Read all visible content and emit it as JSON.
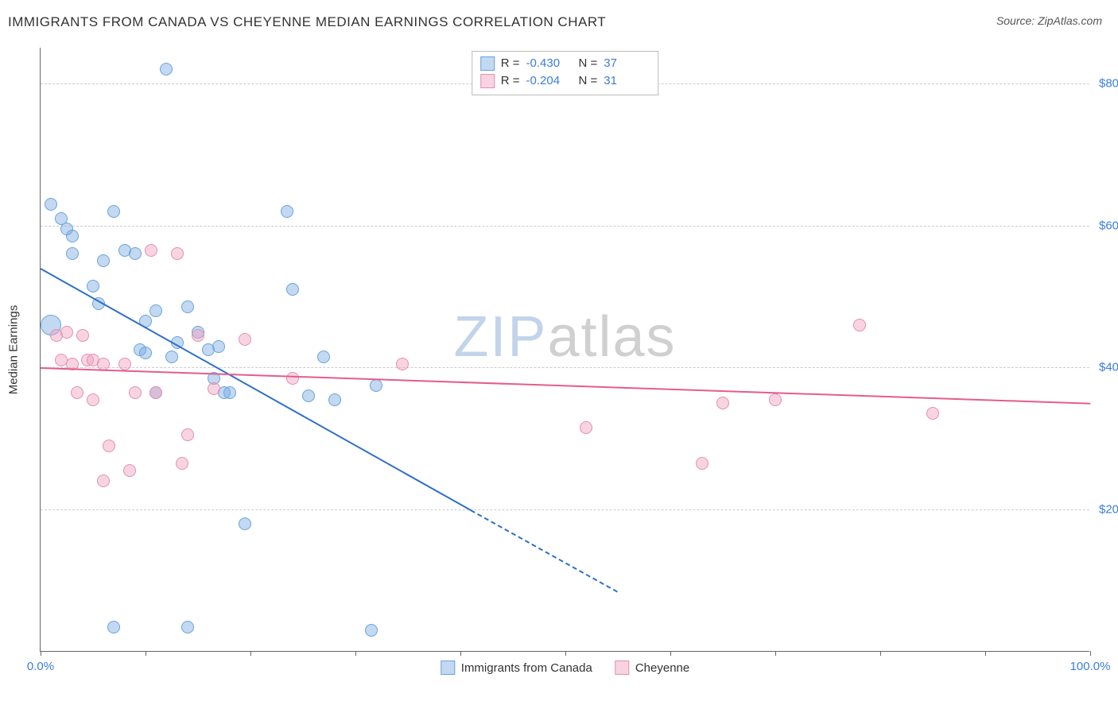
{
  "header": {
    "title": "IMMIGRANTS FROM CANADA VS CHEYENNE MEDIAN EARNINGS CORRELATION CHART",
    "source": "Source: ZipAtlas.com"
  },
  "watermark": {
    "zip": "ZIP",
    "atlas": "atlas"
  },
  "chart": {
    "type": "scatter",
    "background_color": "#ffffff",
    "grid_color": "#cccccc",
    "axis_color": "#666666",
    "ylabel": "Median Earnings",
    "label_fontsize": 15,
    "tick_fontsize": 15,
    "tick_color": "#3b7dd8",
    "xlim": [
      0,
      100
    ],
    "ylim": [
      0,
      85000
    ],
    "x_ticks": [
      0,
      10,
      20,
      30,
      40,
      50,
      60,
      70,
      80,
      90,
      100
    ],
    "x_tick_labels": {
      "0": "0.0%",
      "100": "100.0%"
    },
    "y_gridlines": [
      20000,
      40000,
      60000,
      80000
    ],
    "y_tick_labels": {
      "20000": "$20,000",
      "40000": "$40,000",
      "60000": "$60,000",
      "80000": "$80,000"
    },
    "series": [
      {
        "name": "Immigrants from Canada",
        "fill_color": "rgba(120,170,225,0.45)",
        "stroke_color": "#6aa3dd",
        "line_color": "#2f6fc7",
        "marker_radius": 8,
        "R": "-0.430",
        "N": "37",
        "points": [
          {
            "x": 1,
            "y": 63000,
            "r": 8
          },
          {
            "x": 2,
            "y": 61000,
            "r": 8
          },
          {
            "x": 2.5,
            "y": 59500,
            "r": 8
          },
          {
            "x": 3,
            "y": 58500,
            "r": 8
          },
          {
            "x": 1,
            "y": 46000,
            "r": 13
          },
          {
            "x": 3,
            "y": 56000,
            "r": 8
          },
          {
            "x": 5,
            "y": 51500,
            "r": 8
          },
          {
            "x": 5.5,
            "y": 49000,
            "r": 8
          },
          {
            "x": 6,
            "y": 55000,
            "r": 8
          },
          {
            "x": 7,
            "y": 62000,
            "r": 8
          },
          {
            "x": 8,
            "y": 56500,
            "r": 8
          },
          {
            "x": 9,
            "y": 56000,
            "r": 8
          },
          {
            "x": 9.5,
            "y": 42500,
            "r": 8
          },
          {
            "x": 10,
            "y": 46500,
            "r": 8
          },
          {
            "x": 10,
            "y": 42000,
            "r": 8
          },
          {
            "x": 11,
            "y": 48000,
            "r": 8
          },
          {
            "x": 11,
            "y": 36500,
            "r": 8
          },
          {
            "x": 12,
            "y": 82000,
            "r": 8
          },
          {
            "x": 12.5,
            "y": 41500,
            "r": 8
          },
          {
            "x": 13,
            "y": 43500,
            "r": 8
          },
          {
            "x": 14,
            "y": 48500,
            "r": 8
          },
          {
            "x": 15,
            "y": 45000,
            "r": 8
          },
          {
            "x": 16,
            "y": 42500,
            "r": 8
          },
          {
            "x": 16.5,
            "y": 38500,
            "r": 8
          },
          {
            "x": 17,
            "y": 43000,
            "r": 8
          },
          {
            "x": 17.5,
            "y": 36500,
            "r": 8
          },
          {
            "x": 18,
            "y": 36500,
            "r": 8
          },
          {
            "x": 19.5,
            "y": 18000,
            "r": 8
          },
          {
            "x": 23.5,
            "y": 62000,
            "r": 8
          },
          {
            "x": 24,
            "y": 51000,
            "r": 8
          },
          {
            "x": 25.5,
            "y": 36000,
            "r": 8
          },
          {
            "x": 27,
            "y": 41500,
            "r": 8
          },
          {
            "x": 28,
            "y": 35500,
            "r": 8
          },
          {
            "x": 32,
            "y": 37500,
            "r": 8
          },
          {
            "x": 7,
            "y": 3500,
            "r": 8
          },
          {
            "x": 14,
            "y": 3500,
            "r": 8
          },
          {
            "x": 31.5,
            "y": 3000,
            "r": 8
          }
        ],
        "regression": {
          "x1": 0,
          "y1": 54000,
          "x2": 41,
          "y2": 20000,
          "dashed_to_x": 55,
          "dashed_to_y": 8500
        }
      },
      {
        "name": "Cheyenne",
        "fill_color": "rgba(240,160,190,0.45)",
        "stroke_color": "#e58fb0",
        "line_color": "#e45c8f",
        "marker_radius": 8,
        "R": "-0.204",
        "N": "31",
        "points": [
          {
            "x": 1.5,
            "y": 44500,
            "r": 8
          },
          {
            "x": 2,
            "y": 41000,
            "r": 8
          },
          {
            "x": 2.5,
            "y": 45000,
            "r": 8
          },
          {
            "x": 3,
            "y": 40500,
            "r": 8
          },
          {
            "x": 3.5,
            "y": 36500,
            "r": 8
          },
          {
            "x": 4,
            "y": 44500,
            "r": 8
          },
          {
            "x": 4.5,
            "y": 41000,
            "r": 8
          },
          {
            "x": 5,
            "y": 41000,
            "r": 8
          },
          {
            "x": 5,
            "y": 35500,
            "r": 8
          },
          {
            "x": 6,
            "y": 40500,
            "r": 8
          },
          {
            "x": 6.5,
            "y": 29000,
            "r": 8
          },
          {
            "x": 6,
            "y": 24000,
            "r": 8
          },
          {
            "x": 8,
            "y": 40500,
            "r": 8
          },
          {
            "x": 8.5,
            "y": 25500,
            "r": 8
          },
          {
            "x": 9,
            "y": 36500,
            "r": 8
          },
          {
            "x": 10.5,
            "y": 56500,
            "r": 8
          },
          {
            "x": 11,
            "y": 36500,
            "r": 8
          },
          {
            "x": 13,
            "y": 56000,
            "r": 8
          },
          {
            "x": 13.5,
            "y": 26500,
            "r": 8
          },
          {
            "x": 14,
            "y": 30500,
            "r": 8
          },
          {
            "x": 15,
            "y": 44500,
            "r": 8
          },
          {
            "x": 16.5,
            "y": 37000,
            "r": 8
          },
          {
            "x": 19.5,
            "y": 44000,
            "r": 8
          },
          {
            "x": 24,
            "y": 38500,
            "r": 8
          },
          {
            "x": 34.5,
            "y": 40500,
            "r": 8
          },
          {
            "x": 52,
            "y": 31500,
            "r": 8
          },
          {
            "x": 63,
            "y": 26500,
            "r": 8
          },
          {
            "x": 65,
            "y": 35000,
            "r": 8
          },
          {
            "x": 70,
            "y": 35500,
            "r": 8
          },
          {
            "x": 78,
            "y": 46000,
            "r": 8
          },
          {
            "x": 85,
            "y": 33500,
            "r": 8
          }
        ],
        "regression": {
          "x1": 0,
          "y1": 40000,
          "x2": 100,
          "y2": 35000
        }
      }
    ],
    "legend_top": {
      "R_label": "R =",
      "N_label": "N ="
    },
    "legend_bottom_labels": [
      "Immigrants from Canada",
      "Cheyenne"
    ]
  }
}
